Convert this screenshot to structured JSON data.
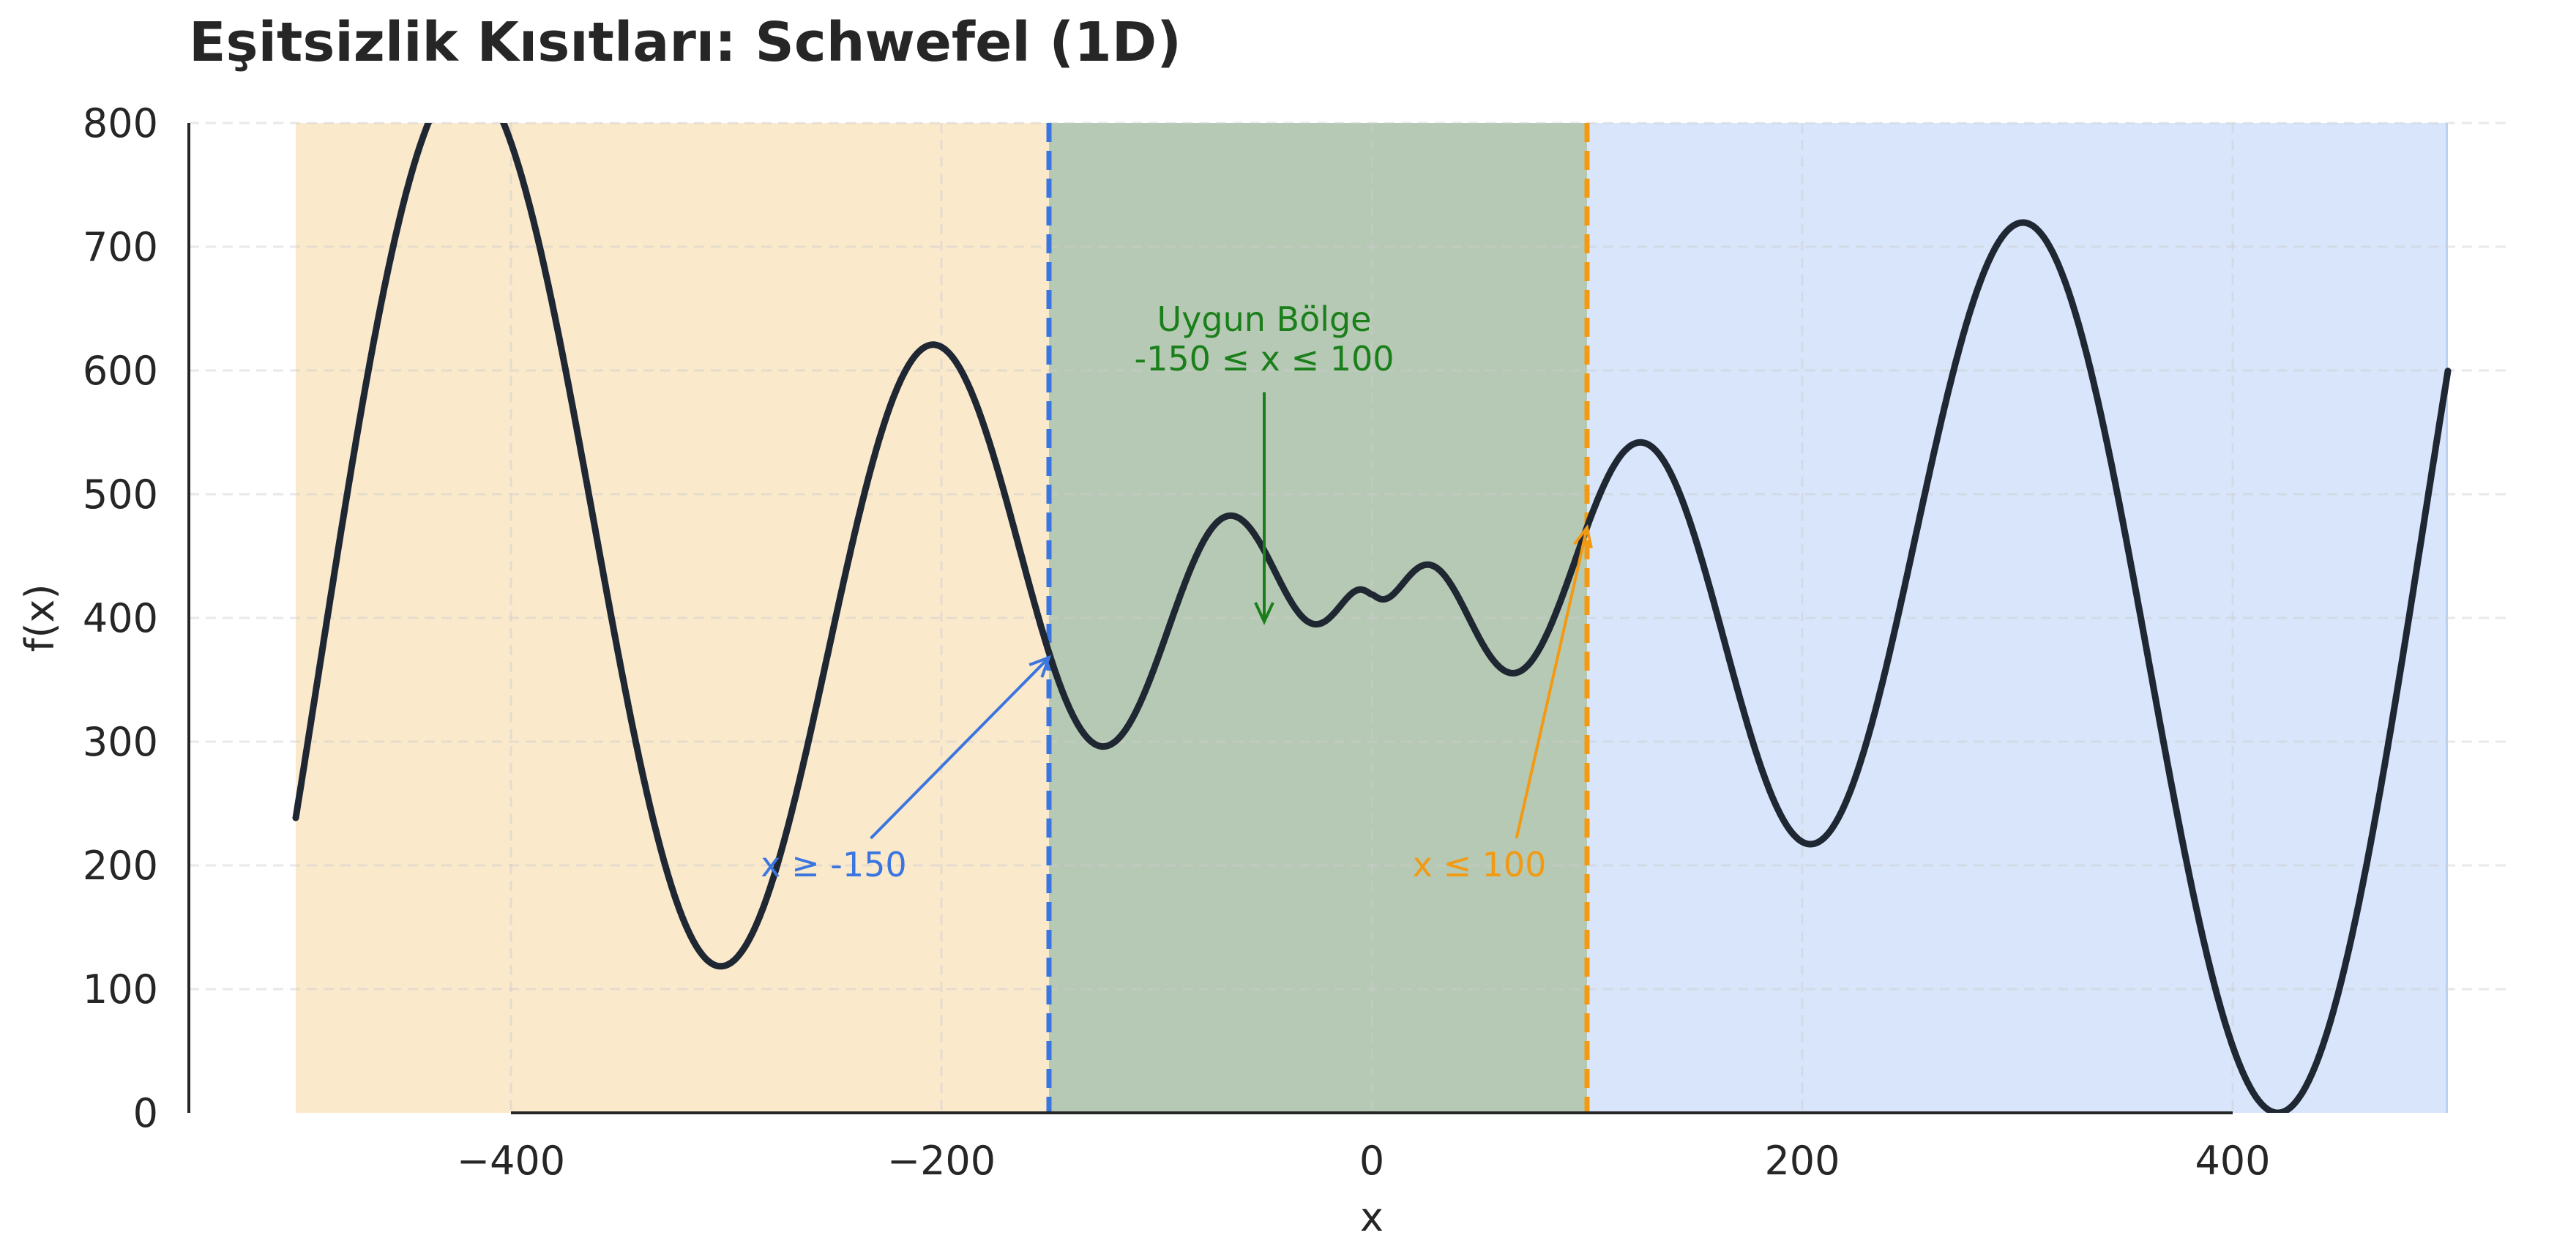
{
  "chart_data": {
    "type": "line",
    "title": "Eşitsizlik Kısıtları: Schwefel (1D)",
    "xlabel": "x",
    "ylabel": "f(x)",
    "xlim": [
      -550,
      550
    ],
    "ylim": [
      0,
      800
    ],
    "x_ticks": [
      -400,
      -200,
      0,
      200,
      400
    ],
    "x_tick_labels": [
      "−400",
      "−200",
      "0",
      "200",
      "400"
    ],
    "y_ticks": [
      0,
      100,
      200,
      300,
      400,
      500,
      600,
      700,
      800
    ],
    "y_tick_labels": [
      "0",
      "100",
      "200",
      "300",
      "400",
      "500",
      "600",
      "700",
      "800"
    ],
    "grid": true,
    "function": "418.9829 - x*sin(sqrt(|x|))",
    "x_range": [
      -500,
      500
    ],
    "series": [
      {
        "color": "#1f2733",
        "x": [
          -500,
          -420.97,
          -302.52,
          -203.81,
          -124.83,
          -65.55,
          -25.88,
          0,
          25.88,
          65.55,
          124.83,
          203.81,
          302.52,
          420.97,
          500
        ],
        "values": [
          240.2,
          837.9,
          120.1,
          621.4,
          298.0,
          482.3,
          396.3,
          419.0,
          441.7,
          355.7,
          540.0,
          216.6,
          717.9,
          0,
          597.8
        ]
      }
    ],
    "regions": [
      {
        "from": -500,
        "to": -150,
        "color": "#fbe9cc"
      },
      {
        "from": -150,
        "to": 100,
        "color": "#b6c9b4"
      },
      {
        "from": 100,
        "to": 500,
        "color": "#d8e5fb"
      }
    ],
    "constraint_lines": [
      {
        "x": -150,
        "color": "#3a75e0"
      },
      {
        "x": 100,
        "color": "#f29a12"
      }
    ],
    "annotations": [
      {
        "lines": [
          "Uygun Bölge",
          "-150 ≤ x ≤ 100"
        ],
        "color": "#1a7f1a",
        "text_x": -50,
        "text_y": 625,
        "arrow_to_x": -50,
        "arrow_to_y": 397
      },
      {
        "lines": [
          "x ≥ -150"
        ],
        "color": "#3a75e0",
        "text_x": -250,
        "text_y": 200,
        "arrow_to_x": -150,
        "arrow_to_y": 368
      },
      {
        "lines": [
          "x ≤ 100"
        ],
        "color": "#f29a12",
        "text_x": 50,
        "text_y": 200,
        "arrow_to_x": 100,
        "arrow_to_y": 473
      }
    ]
  }
}
